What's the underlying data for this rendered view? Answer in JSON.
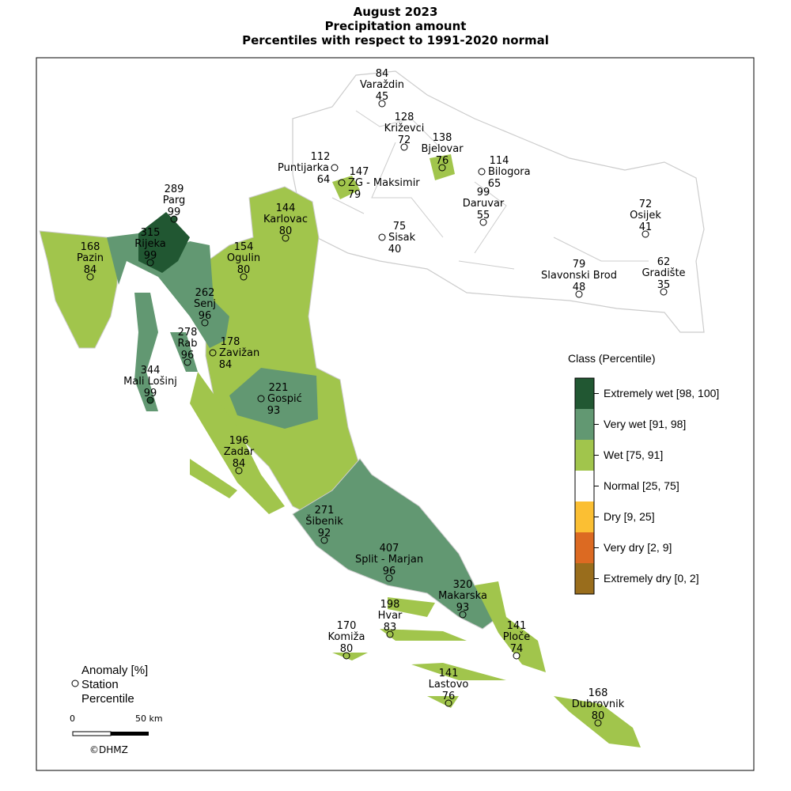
{
  "title": [
    "August 2023",
    "Precipitation amount",
    "Percentiles with respect to 1991-2020 normal"
  ],
  "legend": {
    "title": "Class (Percentile)",
    "classes": [
      {
        "label": "Extremely wet [98, 100]",
        "color": "#215732"
      },
      {
        "label": "Very wet [91, 98]",
        "color": "#629872"
      },
      {
        "label": "Wet [75, 91]",
        "color": "#a1c54c"
      },
      {
        "label": "Normal [25, 75]",
        "color": "#ffffff"
      },
      {
        "label": "Dry [9, 25]",
        "color": "#fbbf33"
      },
      {
        "label": "Very dry [2, 9]",
        "color": "#dc6a22"
      },
      {
        "label": "Extremely dry [0, 2]",
        "color": "#996d1c"
      }
    ]
  },
  "key": {
    "anomaly": "Anomaly [%]",
    "station": "Station",
    "percentile": "Percentile"
  },
  "scale": {
    "zero": "0",
    "max": "50 km"
  },
  "credit": "©DHMZ",
  "stations": [
    {
      "name": "Varaždin",
      "anomaly": "84",
      "percentile": "45",
      "cls": 3
    },
    {
      "name": "Križevci",
      "anomaly": "128",
      "percentile": "72",
      "cls": 3
    },
    {
      "name": "Bjelovar",
      "anomaly": "138",
      "percentile": "76",
      "cls": 2
    },
    {
      "name": "Bilogora",
      "anomaly": "114",
      "percentile": "65",
      "cls": 3
    },
    {
      "name": "Puntijarka",
      "anomaly": "112",
      "percentile": "64",
      "cls": 3
    },
    {
      "name": "ZG - Maksimir",
      "anomaly": "147",
      "percentile": "79",
      "cls": 2
    },
    {
      "name": "Karlovac",
      "anomaly": "144",
      "percentile": "80",
      "cls": 2
    },
    {
      "name": "Sisak",
      "anomaly": "75",
      "percentile": "40",
      "cls": 3
    },
    {
      "name": "Daruvar",
      "anomaly": "99",
      "percentile": "55",
      "cls": 3
    },
    {
      "name": "Osijek",
      "anomaly": "72",
      "percentile": "41",
      "cls": 3
    },
    {
      "name": "Slavonski Brod",
      "anomaly": "79",
      "percentile": "48",
      "cls": 3
    },
    {
      "name": "Gradište",
      "anomaly": "62",
      "percentile": "35",
      "cls": 3
    },
    {
      "name": "Parg",
      "anomaly": "289",
      "percentile": "99",
      "cls": 0
    },
    {
      "name": "Rijeka",
      "anomaly": "315",
      "percentile": "99",
      "cls": 0
    },
    {
      "name": "Pazin",
      "anomaly": "168",
      "percentile": "84",
      "cls": 2
    },
    {
      "name": "Ogulin",
      "anomaly": "154",
      "percentile": "80",
      "cls": 2
    },
    {
      "name": "Senj",
      "anomaly": "262",
      "percentile": "96",
      "cls": 1
    },
    {
      "name": "Rab",
      "anomaly": "278",
      "percentile": "96",
      "cls": 1
    },
    {
      "name": "Zavižan",
      "anomaly": "178",
      "percentile": "84",
      "cls": 2
    },
    {
      "name": "Mali Lošinj",
      "anomaly": "344",
      "percentile": "99",
      "cls": 0
    },
    {
      "name": "Gospić",
      "anomaly": "221",
      "percentile": "93",
      "cls": 1
    },
    {
      "name": "Zadar",
      "anomaly": "196",
      "percentile": "84",
      "cls": 2
    },
    {
      "name": "Šibenik",
      "anomaly": "271",
      "percentile": "92",
      "cls": 1
    },
    {
      "name": "Split - Marjan",
      "anomaly": "407",
      "percentile": "96",
      "cls": 1
    },
    {
      "name": "Makarska",
      "anomaly": "320",
      "percentile": "93",
      "cls": 1
    },
    {
      "name": "Hvar",
      "anomaly": "198",
      "percentile": "83",
      "cls": 2
    },
    {
      "name": "Komiža",
      "anomaly": "170",
      "percentile": "80",
      "cls": 2
    },
    {
      "name": "Ploče",
      "anomaly": "141",
      "percentile": "74",
      "cls": 3
    },
    {
      "name": "Lastovo",
      "anomaly": "141",
      "percentile": "76",
      "cls": 2
    },
    {
      "name": "Dubrovnik",
      "anomaly": "168",
      "percentile": "80",
      "cls": 2
    }
  ]
}
